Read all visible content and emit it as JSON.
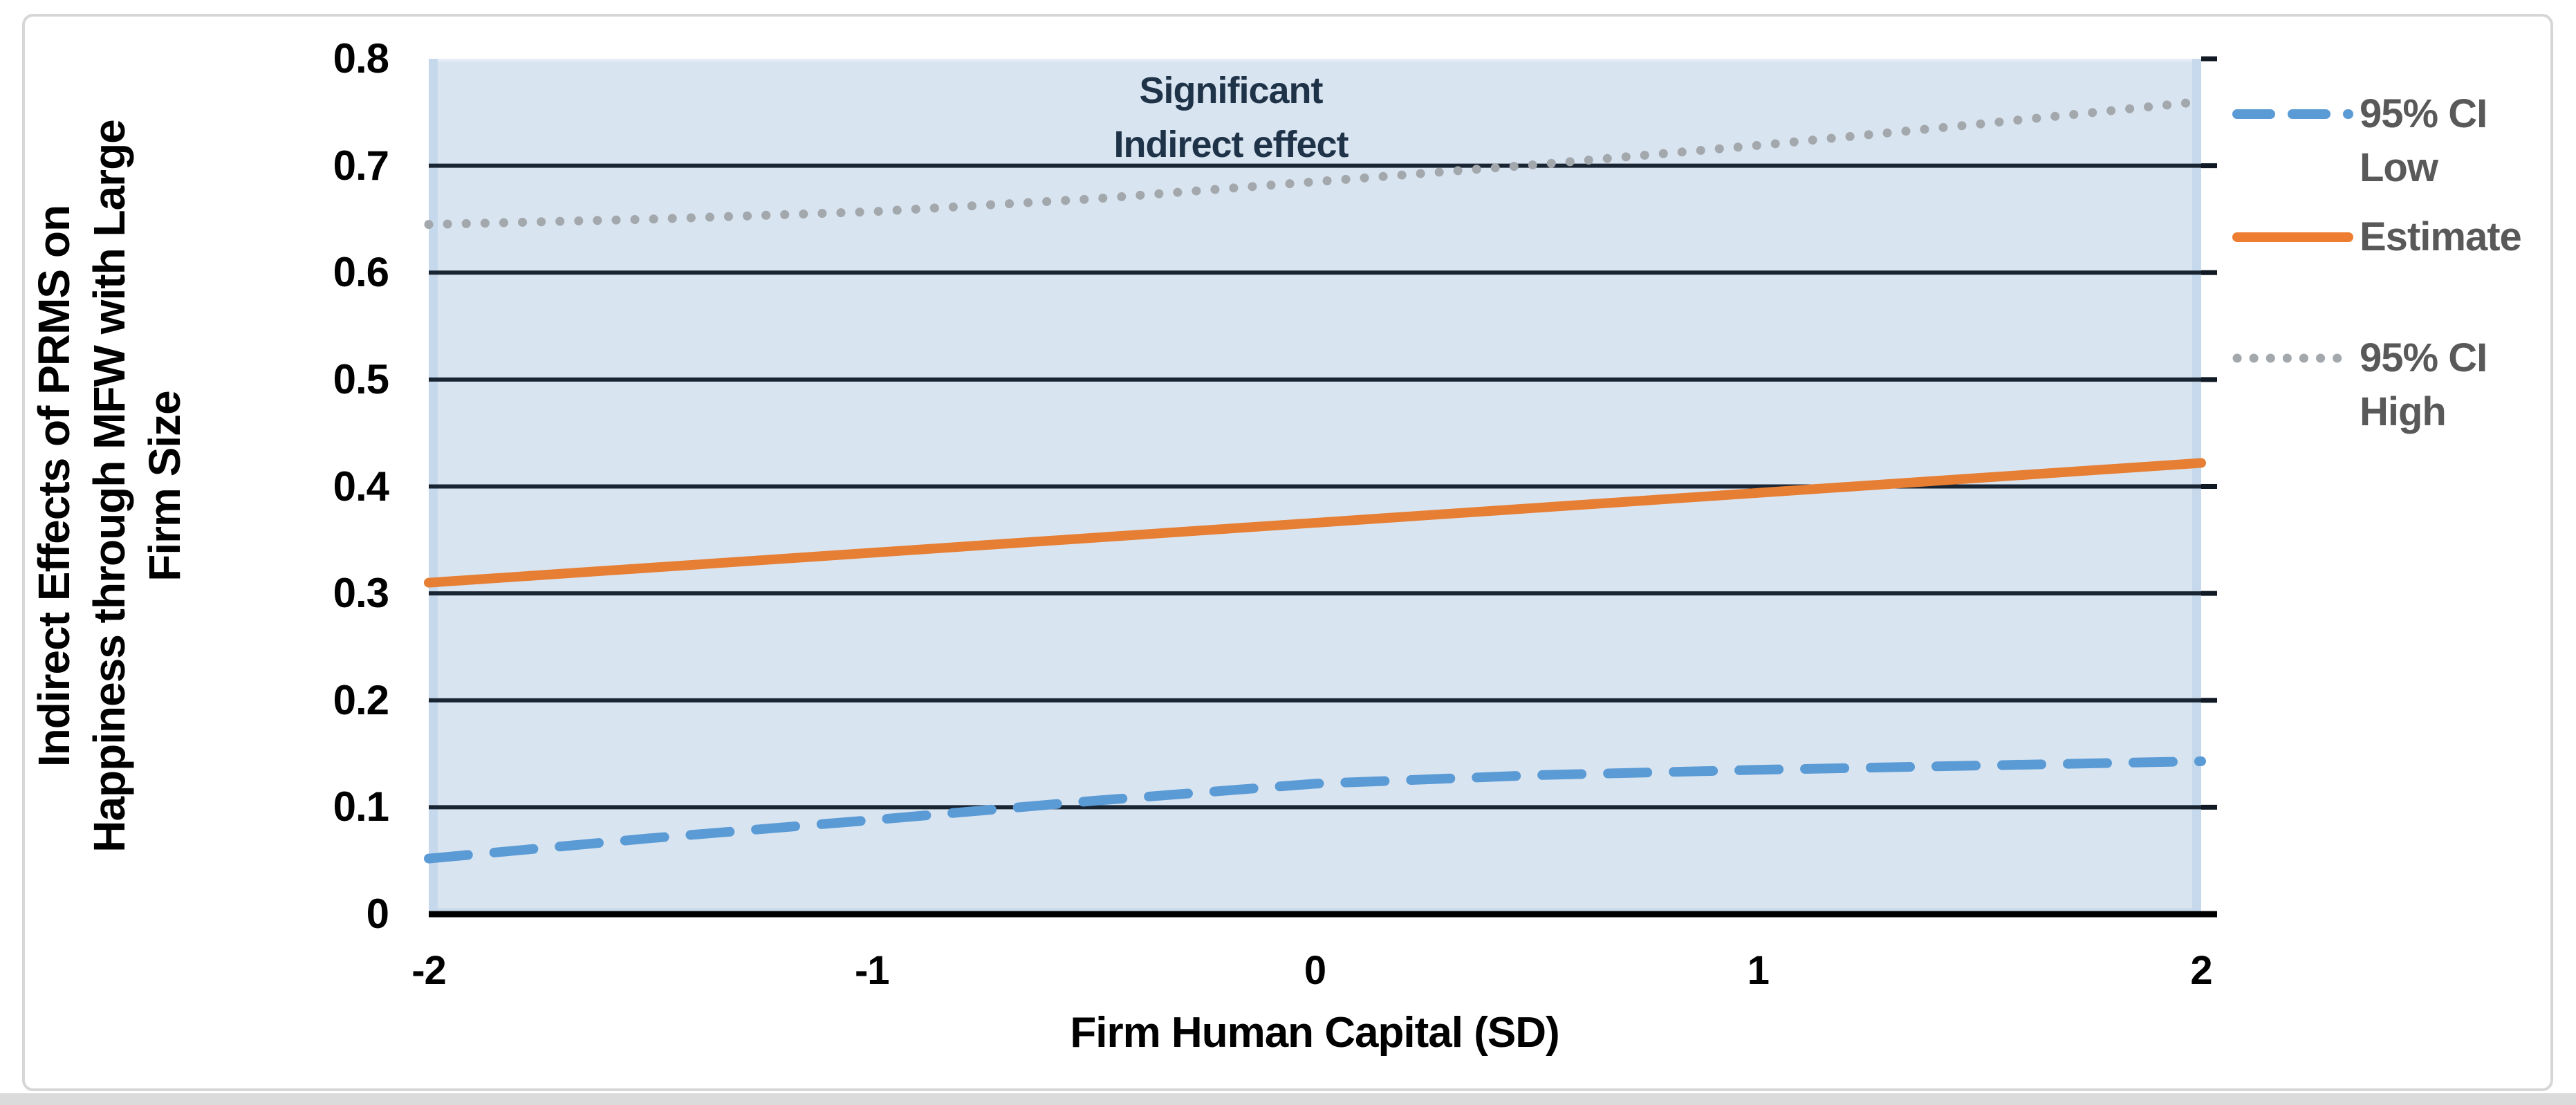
{
  "figure": {
    "y_axis": {
      "title_lines": [
        "Indirect Effects of PRMS on",
        "Happiness through MFW with Large",
        "Firm Size"
      ],
      "tick_labels": [
        "0.8",
        "0.7",
        "0.6",
        "0.5",
        "0.4",
        "0.3",
        "0.2",
        "0.1",
        "0"
      ],
      "tick_values": [
        0.8,
        0.7,
        0.6,
        0.5,
        0.4,
        0.3,
        0.2,
        0.1,
        0
      ]
    },
    "x_axis": {
      "title": "Firm Human Capital (SD)",
      "tick_labels": [
        "-2",
        "-1",
        "0",
        "1",
        "2"
      ],
      "tick_values": [
        -2,
        -1,
        0,
        1,
        2
      ]
    },
    "annotation": {
      "line1": "Significant",
      "line2": "Indirect effect"
    },
    "legend": [
      {
        "label_lines": [
          "95% CI",
          "Low"
        ],
        "series": "95% CI Low",
        "style": "dashed",
        "color": "#5B9BD5"
      },
      {
        "label_lines": [
          "Estimate"
        ],
        "series": "Estimate",
        "style": "solid",
        "color": "#ED7D31"
      },
      {
        "label_lines": [
          "95% CI",
          "High"
        ],
        "series": "95% CI High",
        "style": "dotted",
        "color": "#A3A8AD"
      }
    ],
    "colors": {
      "ci_low": "#5B9BD5",
      "estimate": "#E67E33",
      "ci_high": "#A3A8AD",
      "gridline": "#1a2533",
      "axis_line": "#000000",
      "plot_background": "#d9e4f1",
      "plot_edge": "#c6d9ec",
      "annotation_text": "#1f3348",
      "legend_text": "#595959",
      "tick_text": "#000000"
    }
  },
  "chart_data": {
    "type": "line",
    "title": "",
    "xlabel": "Firm Human Capital (SD)",
    "ylabel": "Indirect Effects of PRMS on Happiness through MFW with Large Firm Size",
    "annotation": "Significant Indirect effect",
    "x": [
      -2,
      -1.5,
      -1,
      -0.5,
      0,
      0.5,
      1,
      1.5,
      2
    ],
    "series": [
      {
        "name": "95% CI Low",
        "style": "dashed",
        "color": "#5B9BD5",
        "values": [
          0.052,
          0.071,
          0.088,
          0.106,
          0.122,
          0.13,
          0.135,
          0.139,
          0.143
        ]
      },
      {
        "name": "Estimate",
        "style": "solid",
        "color": "#E67E33",
        "values": [
          0.31,
          0.324,
          0.338,
          0.352,
          0.366,
          0.38,
          0.394,
          0.408,
          0.422
        ]
      },
      {
        "name": "95% CI High",
        "style": "dotted",
        "color": "#A3A8AD",
        "values": [
          0.645,
          0.65,
          0.657,
          0.669,
          0.685,
          0.701,
          0.719,
          0.739,
          0.76
        ]
      }
    ],
    "xlim": [
      -2,
      2
    ],
    "ylim": [
      0,
      0.8
    ],
    "yticks": [
      0,
      0.1,
      0.2,
      0.3,
      0.4,
      0.5,
      0.6,
      0.7,
      0.8
    ],
    "xticks": [
      -2,
      -1,
      0,
      1,
      2
    ],
    "grid": "horizontal",
    "legend_position": "right"
  }
}
